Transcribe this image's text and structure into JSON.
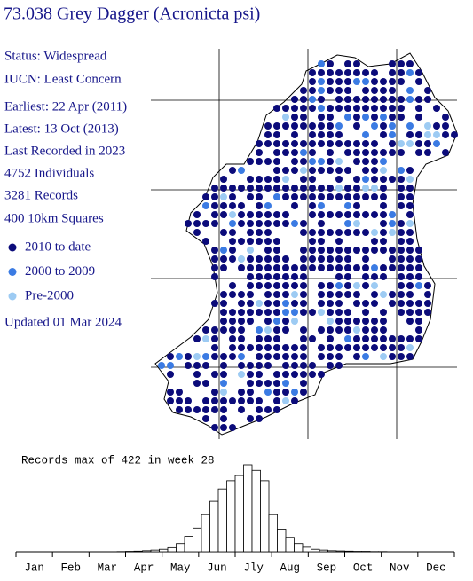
{
  "header": {
    "title": "73.038 Grey Dagger (Acronicta psi)"
  },
  "info": [
    "Status: Widespread",
    "IUCN: Least Concern",
    "Earliest: 22 Apr (2011)",
    "Latest: 13 Oct (2013)",
    "Last Recorded in 2023",
    "4752 Individuals",
    "3281 Records",
    "400 10km Squares"
  ],
  "legend": [
    {
      "label": "2010 to date",
      "color": "#0b0b7a"
    },
    {
      "label": "2000 to 2009",
      "color": "#3b7be3"
    },
    {
      "label": "Pre-2000",
      "color": "#9dcbf3"
    }
  ],
  "updated": "Updated 01 Mar 2024",
  "chart_data": {
    "type": "bar",
    "title": "Records max of 422 in week 28",
    "x_labels": [
      "Jan",
      "Feb",
      "Mar",
      "Apr",
      "May",
      "Jun",
      "Jly",
      "Aug",
      "Sep",
      "Oct",
      "Nov",
      "Dec"
    ],
    "values": [
      0,
      0,
      0,
      0,
      0,
      0,
      0,
      0,
      0,
      0,
      0,
      0,
      1,
      2,
      3,
      5,
      8,
      12,
      20,
      40,
      75,
      115,
      180,
      245,
      305,
      345,
      370,
      422,
      395,
      345,
      180,
      110,
      70,
      40,
      22,
      12,
      8,
      5,
      4,
      3,
      2,
      2,
      1,
      1,
      0,
      0,
      0,
      0,
      0,
      0,
      0,
      0
    ],
    "color": "#ffffff"
  }
}
